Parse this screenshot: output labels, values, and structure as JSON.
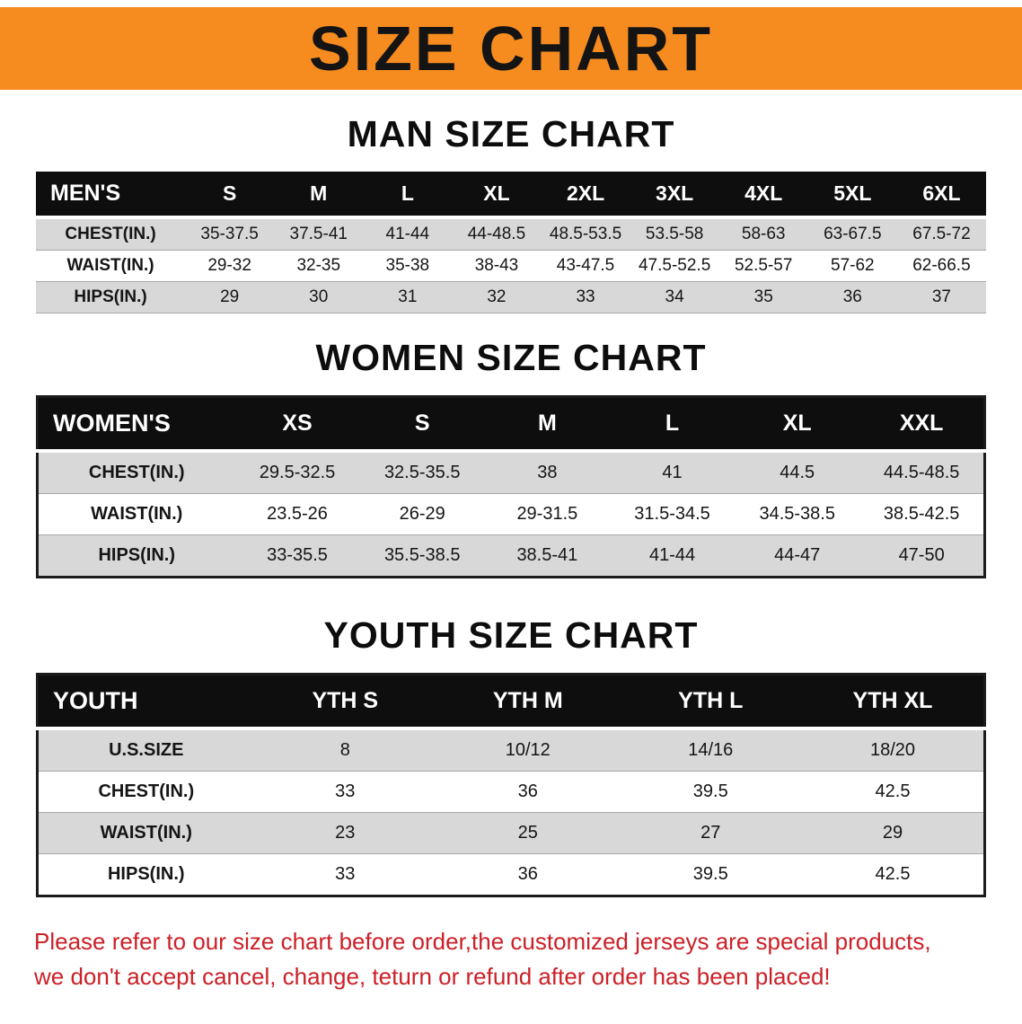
{
  "banner": {
    "title": "SIZE CHART",
    "bg_color": "#f68b1f"
  },
  "sections": [
    {
      "heading": "MAN SIZE CHART",
      "header": [
        "MEN'S",
        "S",
        "M",
        "L",
        "XL",
        "2XL",
        "3XL",
        "4XL",
        "5XL",
        "6XL"
      ],
      "rows": [
        [
          "CHEST(IN.)",
          "35-37.5",
          "37.5-41",
          "41-44",
          "44-48.5",
          "48.5-53.5",
          "53.5-58",
          "58-63",
          "63-67.5",
          "67.5-72"
        ],
        [
          "WAIST(IN.)",
          "29-32",
          "32-35",
          "35-38",
          "38-43",
          "43-47.5",
          "47.5-52.5",
          "52.5-57",
          "57-62",
          "62-66.5"
        ],
        [
          "HIPS(IN.)",
          "29",
          "30",
          "31",
          "32",
          "33",
          "34",
          "35",
          "36",
          "37"
        ]
      ]
    },
    {
      "heading": "WOMEN SIZE CHART",
      "header": [
        "WOMEN'S",
        "XS",
        "S",
        "M",
        "L",
        "XL",
        "XXL"
      ],
      "rows": [
        [
          "CHEST(IN.)",
          "29.5-32.5",
          "32.5-35.5",
          "38",
          "41",
          "44.5",
          "44.5-48.5"
        ],
        [
          "WAIST(IN.)",
          "23.5-26",
          "26-29",
          "29-31.5",
          "31.5-34.5",
          "34.5-38.5",
          "38.5-42.5"
        ],
        [
          "HIPS(IN.)",
          "33-35.5",
          "35.5-38.5",
          "38.5-41",
          "41-44",
          "44-47",
          "47-50"
        ]
      ]
    },
    {
      "heading": "YOUTH SIZE CHART",
      "header": [
        "YOUTH",
        "YTH S",
        "YTH M",
        "YTH L",
        "YTH XL"
      ],
      "rows": [
        [
          "U.S.SIZE",
          "8",
          "10/12",
          "14/16",
          "18/20"
        ],
        [
          "CHEST(IN.)",
          "33",
          "36",
          "39.5",
          "42.5"
        ],
        [
          "WAIST(IN.)",
          "23",
          "25",
          "27",
          "29"
        ],
        [
          "HIPS(IN.)",
          "33",
          "36",
          "39.5",
          "42.5"
        ]
      ]
    }
  ],
  "notice": {
    "line1": "Please refer to our size chart before order,the customized jerseys are special products,",
    "line2": "we don't accept cancel, change, teturn or refund after order has been placed!",
    "color": "#cc2027"
  }
}
